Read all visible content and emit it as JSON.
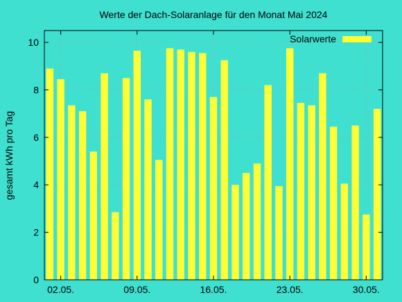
{
  "chart_data": {
    "type": "bar",
    "title": "Werte der Dach-Solaranlage für den Monat Mai 2024",
    "xlabel": "",
    "ylabel": "gesamt kWh pro Tag",
    "ylim": [
      0,
      10.5
    ],
    "yticks": [
      0,
      2,
      4,
      6,
      8,
      10
    ],
    "x_tick_labels": [
      {
        "day": 2,
        "label": "02.05."
      },
      {
        "day": 9,
        "label": "09.05."
      },
      {
        "day": 16,
        "label": "16.05."
      },
      {
        "day": 23,
        "label": "23.05."
      },
      {
        "day": 30,
        "label": "30.05."
      }
    ],
    "grid": true,
    "legend_position": "top-right",
    "series": [
      {
        "name": "Solarwerte",
        "color": "#ffff33",
        "days": [
          1,
          2,
          3,
          4,
          5,
          6,
          7,
          8,
          9,
          10,
          11,
          12,
          13,
          14,
          15,
          16,
          17,
          18,
          19,
          20,
          21,
          22,
          23,
          24,
          25,
          26,
          27,
          28,
          29,
          30,
          31
        ],
        "values": [
          8.9,
          8.45,
          7.35,
          7.1,
          5.4,
          8.7,
          2.85,
          8.5,
          9.65,
          7.6,
          5.05,
          9.75,
          9.7,
          9.6,
          9.55,
          7.7,
          9.25,
          4.0,
          4.5,
          4.9,
          8.2,
          3.95,
          9.75,
          7.45,
          7.35,
          8.7,
          6.45,
          4.05,
          6.5,
          2.75,
          7.2
        ]
      }
    ],
    "colors": {
      "background": "#40e0d0",
      "bar": "#ffff33",
      "grid": "#a0a0a0",
      "axis": "#000000"
    }
  }
}
